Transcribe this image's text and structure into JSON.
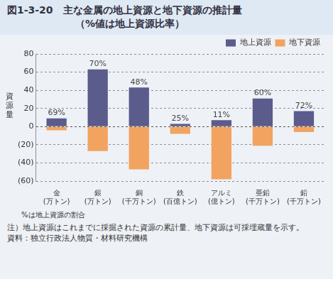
{
  "chart_data": {
    "type": "bar",
    "title": "図1-3-20　主な金属の地上資源と地下資源の推計量",
    "subtitle": "（%値は地上資源比率）",
    "y_label": "資源量",
    "categories": [
      [
        "金",
        "(万トン)"
      ],
      [
        "銀",
        "(万トン)"
      ],
      [
        "銅",
        "(千万トン)"
      ],
      [
        "鉄",
        "(百億トン)"
      ],
      [
        "アルミ",
        "(億トン)"
      ],
      [
        "亜鉛",
        "(千万トン)"
      ],
      [
        "鉛",
        "(千万トン)"
      ]
    ],
    "series": [
      {
        "name": "地上資源",
        "color": "#5b5b8c",
        "values": [
          9,
          63,
          43,
          3,
          7,
          31,
          17
        ]
      },
      {
        "name": "地下資源",
        "color": "#f2a35f",
        "values": [
          -4,
          -27,
          -47,
          -8,
          -58,
          -21,
          -6
        ]
      }
    ],
    "annotations": [
      "69%",
      "70%",
      "48%",
      "25%",
      "11%",
      "60%",
      "72%"
    ],
    "ylim": [
      -60,
      80
    ],
    "yticks": [
      {
        "value": -60,
        "label": "(60)"
      },
      {
        "value": -40,
        "label": "(40)"
      },
      {
        "value": -20,
        "label": "(20)"
      },
      0,
      20,
      40,
      60,
      80
    ],
    "stacked": true,
    "grid": true,
    "legend": "top-right",
    "notes": [
      "%は地上資源の割合",
      "注）地上資源はこれまでに採掘された資源の累計量、地下資源は可採埋蔵量を示す。",
      "資料：独立行政法人物質・材料研究機構"
    ]
  }
}
